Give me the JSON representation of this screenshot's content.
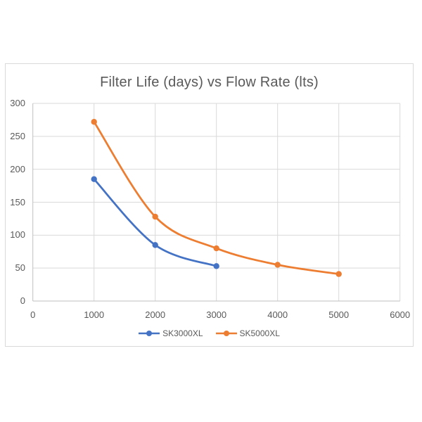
{
  "page": {
    "background_color": "#ffffff",
    "chart_border_color": "#d9d9d9"
  },
  "chart_data": {
    "type": "line",
    "title": "Filter Life (days) vs Flow Rate (lts)",
    "xlabel": "",
    "ylabel": "",
    "x_axis": {
      "min": 0,
      "max": 6000,
      "tick_interval": 1000,
      "tick_labels": [
        "0",
        "1000",
        "2000",
        "3000",
        "4000",
        "5000",
        "6000"
      ]
    },
    "y_axis": {
      "min": 0,
      "max": 300,
      "tick_interval": 50,
      "tick_labels": [
        "0",
        "50",
        "100",
        "150",
        "200",
        "250",
        "300"
      ]
    },
    "grid": true,
    "smooth_lines": true,
    "marker_shape": "circle",
    "legend_position": "bottom",
    "series": [
      {
        "name": "SK3000XL",
        "color": "#4472C4",
        "x": [
          1000,
          2000,
          3000
        ],
        "values": [
          185,
          85,
          53
        ]
      },
      {
        "name": "SK5000XL",
        "color": "#ED7D31",
        "x": [
          1000,
          2000,
          3000,
          4000,
          5000
        ],
        "values": [
          272,
          128,
          80,
          55,
          41
        ]
      }
    ]
  },
  "colors": {
    "gridline": "#d9d9d9",
    "axis_line": "#bfbfbf",
    "tick_text": "#595959",
    "title_text": "#595959"
  }
}
